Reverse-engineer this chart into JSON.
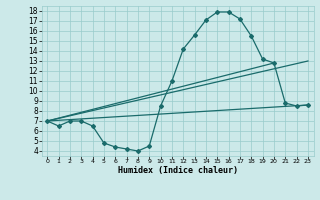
{
  "title": "",
  "xlabel": "Humidex (Indice chaleur)",
  "bg_color": "#cce9e9",
  "line_color": "#1a6b6b",
  "grid_color": "#99cccc",
  "xlim": [
    -0.5,
    23.5
  ],
  "ylim": [
    3.5,
    18.5
  ],
  "xticks": [
    0,
    1,
    2,
    3,
    4,
    5,
    6,
    7,
    8,
    9,
    10,
    11,
    12,
    13,
    14,
    15,
    16,
    17,
    18,
    19,
    20,
    21,
    22,
    23
  ],
  "yticks": [
    4,
    5,
    6,
    7,
    8,
    9,
    10,
    11,
    12,
    13,
    14,
    15,
    16,
    17,
    18
  ],
  "curve1_x": [
    0,
    1,
    2,
    3,
    4,
    5,
    6,
    7,
    8,
    9,
    10,
    11,
    12,
    13,
    14,
    15,
    16,
    17,
    18,
    19,
    20,
    21,
    22,
    23
  ],
  "curve1_y": [
    7.0,
    6.5,
    7.0,
    7.0,
    6.5,
    4.8,
    4.4,
    4.2,
    4.0,
    4.5,
    8.5,
    11.0,
    14.2,
    15.6,
    17.1,
    17.9,
    17.9,
    17.2,
    15.5,
    13.2,
    12.8,
    8.8,
    8.5,
    8.6
  ],
  "line2_x": [
    0,
    20
  ],
  "line2_y": [
    7.0,
    12.8
  ],
  "line3_x": [
    0,
    23
  ],
  "line3_y": [
    7.0,
    13.0
  ],
  "line4_x": [
    0,
    23
  ],
  "line4_y": [
    7.0,
    8.6
  ]
}
